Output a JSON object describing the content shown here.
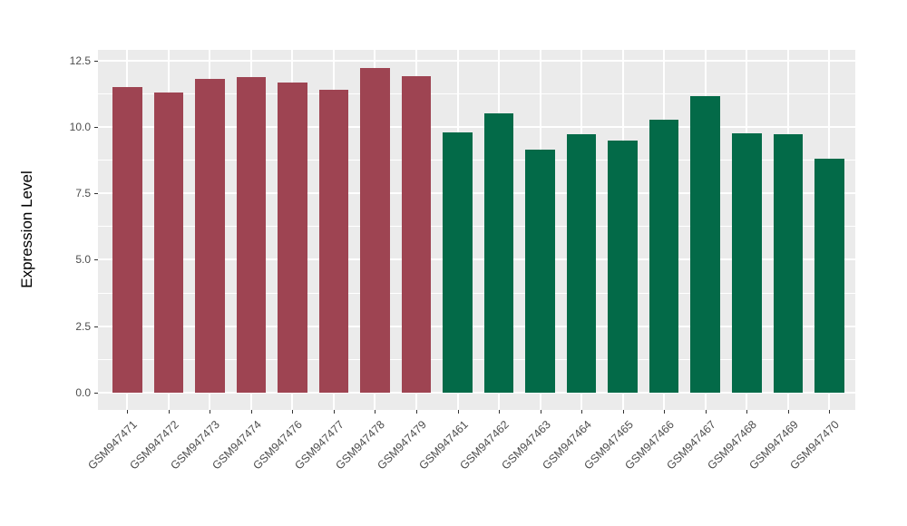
{
  "figure": {
    "y_axis_title": "Expression Level"
  },
  "chart_data": {
    "type": "bar",
    "title": "",
    "xlabel": "",
    "ylabel": "Expression Level",
    "ylim": [
      0,
      12.5
    ],
    "yticks": [
      "0.0",
      "2.5",
      "5.0",
      "7.5",
      "10.0",
      "12.5"
    ],
    "ytick_values": [
      0,
      2.5,
      5,
      7.5,
      10,
      12.5
    ],
    "minor_gridline_values": [
      1.25,
      3.75,
      6.25,
      8.75,
      11.25
    ],
    "grid": "on",
    "legend_position": "none",
    "panel_background": "#EBEBEB",
    "gridline_color": "#FFFFFF",
    "tick_color": "#333333",
    "tick_label_color": "#4D4D4D",
    "bar_group_colors": [
      "#9E4452",
      "#036A48"
    ],
    "categories": [
      "GSM947471",
      "GSM947472",
      "GSM947473",
      "GSM947474",
      "GSM947476",
      "GSM947477",
      "GSM947478",
      "GSM947479",
      "GSM947461",
      "GSM947462",
      "GSM947463",
      "GSM947464",
      "GSM947465",
      "GSM947466",
      "GSM947467",
      "GSM947468",
      "GSM947469",
      "GSM947470"
    ],
    "values": [
      11.49,
      11.3,
      11.79,
      11.86,
      11.66,
      11.39,
      12.2,
      11.9,
      9.79,
      10.49,
      9.15,
      9.71,
      9.49,
      10.27,
      11.15,
      9.77,
      9.72,
      8.8
    ],
    "bar_colors": [
      "#9E4452",
      "#9E4452",
      "#9E4452",
      "#9E4452",
      "#9E4452",
      "#9E4452",
      "#9E4452",
      "#9E4452",
      "#036A48",
      "#036A48",
      "#036A48",
      "#036A48",
      "#036A48",
      "#036A48",
      "#036A48",
      "#036A48",
      "#036A48",
      "#036A48"
    ]
  }
}
